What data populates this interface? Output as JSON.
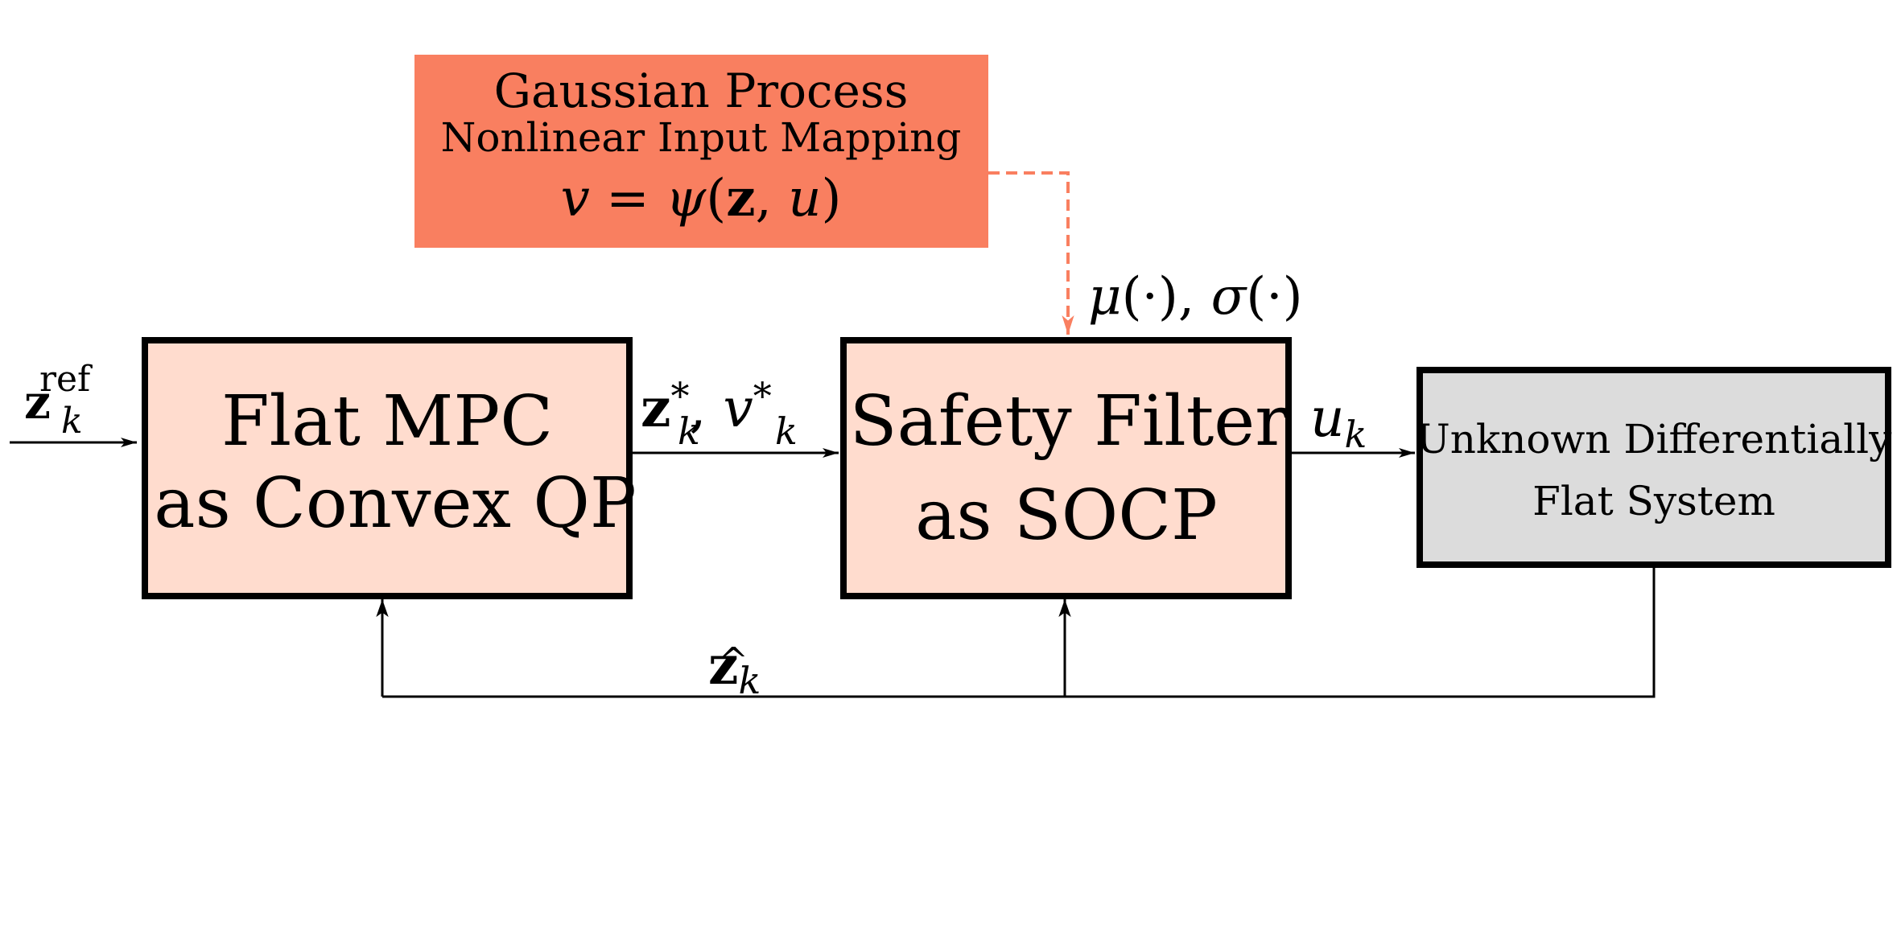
{
  "colors": {
    "gp_fill": "#f97f60",
    "gp_line": "#f97f60",
    "block_fill": "#ffdcce",
    "plant_fill": "#dcdcdc",
    "stroke": "#000000"
  },
  "gp_block": {
    "title": "Gaussian Process",
    "subtitle": "Nonlinear Input Mapping",
    "eq_lhs": "v",
    "eq_eq": " = ",
    "eq_psi": "ψ",
    "eq_open": "(",
    "eq_z": "z",
    "eq_comma": ", ",
    "eq_u": "u",
    "eq_close": ")"
  },
  "gp_output": {
    "mu": "μ",
    "mu_args": "(·), ",
    "sigma": "σ",
    "sigma_args": "(·)"
  },
  "mpc_block": {
    "line1": "Flat MPC",
    "line2": "as Convex QP"
  },
  "filter_block": {
    "line1": "Safety Filter",
    "line2": "as SOCP"
  },
  "plant_block": {
    "line1": "Unknown Differentially",
    "line2": "Flat System"
  },
  "signals": {
    "ref_base": "z",
    "ref_sup": "ref",
    "ref_sub": "k",
    "mpc_out_z": "z",
    "mpc_out_z_sup": "*",
    "mpc_out_z_sub": "k",
    "mpc_out_sep": ", ",
    "mpc_out_v": "v",
    "mpc_out_v_sup": "*",
    "mpc_out_v_sub": "k",
    "u_base": "u",
    "u_sub": "k",
    "fb_hat": "^",
    "fb_base": "z",
    "fb_sub": "k"
  }
}
